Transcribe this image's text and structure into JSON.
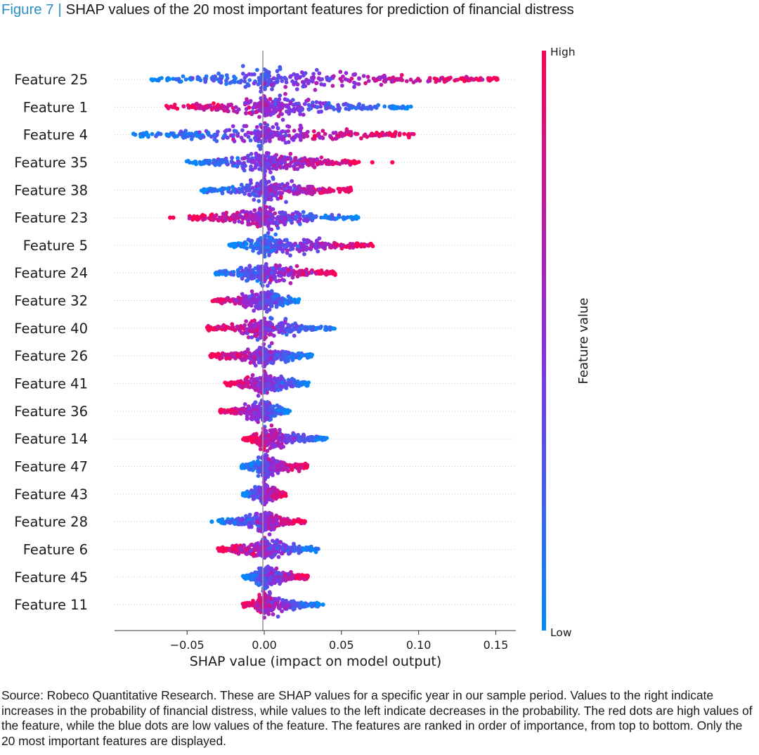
{
  "figure": {
    "label": "Figure 7",
    "separator": "|",
    "title": "SHAP values of the 20 most important features for prediction of financial distress"
  },
  "source_note": "Source: Robeco Quantitative Research. These are SHAP values for a specific year in our sample period. Values to the right indicate increases in the probability of financial distress, while values to the left indicate decreases in the probability. The red dots are high values of the feature, while the blue dots are low values of the feature. The features are ranked in order of importance, from top to bottom. Only the 20 most important features are displayed.",
  "chart_data": {
    "type": "scatter",
    "subtype": "shap-beeswarm",
    "xlabel": "SHAP value (impact on model output)",
    "ylabel": "",
    "xlim": [
      -0.097,
      0.163
    ],
    "xticks": [
      -0.05,
      0.0,
      0.05,
      0.1,
      0.15
    ],
    "xtick_labels": [
      "−0.05",
      "0.00",
      "0.05",
      "0.10",
      "0.15"
    ],
    "grid": false,
    "zero_line": true,
    "colorbar": {
      "label": "Feature value",
      "high_label": "High",
      "low_label": "Low",
      "high_color": "#ff0052",
      "mid_color": "#8a2de0",
      "low_color": "#008bfb"
    },
    "features": [
      {
        "name": "Feature 25",
        "min": -0.073,
        "max": 0.151,
        "low_side": "left",
        "outliers": [
          -0.073,
          0.151
        ]
      },
      {
        "name": "Feature 1",
        "min": -0.064,
        "max": 0.095,
        "low_side": "right",
        "outliers": []
      },
      {
        "name": "Feature 4",
        "min": -0.085,
        "max": 0.098,
        "low_side": "left",
        "outliers": []
      },
      {
        "name": "Feature 35",
        "min": -0.051,
        "max": 0.062,
        "low_side": "left",
        "outliers": [
          0.07,
          0.083
        ]
      },
      {
        "name": "Feature 38",
        "min": -0.042,
        "max": 0.057,
        "low_side": "left",
        "outliers": []
      },
      {
        "name": "Feature 23",
        "min": -0.049,
        "max": 0.061,
        "low_side": "right",
        "outliers": [
          -0.061,
          -0.059
        ]
      },
      {
        "name": "Feature 5",
        "min": -0.023,
        "max": 0.072,
        "low_side": "left",
        "outliers": []
      },
      {
        "name": "Feature 24",
        "min": -0.032,
        "max": 0.046,
        "low_side": "left",
        "outliers": []
      },
      {
        "name": "Feature 32",
        "min": -0.034,
        "max": 0.023,
        "low_side": "right",
        "outliers": []
      },
      {
        "name": "Feature 40",
        "min": -0.037,
        "max": 0.046,
        "low_side": "right",
        "outliers": []
      },
      {
        "name": "Feature 26",
        "min": -0.035,
        "max": 0.031,
        "low_side": "right",
        "outliers": []
      },
      {
        "name": "Feature 41",
        "min": -0.026,
        "max": 0.03,
        "low_side": "right",
        "outliers": []
      },
      {
        "name": "Feature 36",
        "min": -0.029,
        "max": 0.017,
        "low_side": "right",
        "outliers": []
      },
      {
        "name": "Feature 14",
        "min": -0.014,
        "max": 0.041,
        "low_side": "right",
        "outliers": []
      },
      {
        "name": "Feature 47",
        "min": -0.015,
        "max": 0.028,
        "low_side": "left",
        "outliers": []
      },
      {
        "name": "Feature 43",
        "min": -0.014,
        "max": 0.014,
        "low_side": "left",
        "outliers": []
      },
      {
        "name": "Feature 28",
        "min": -0.03,
        "max": 0.027,
        "low_side": "left",
        "outliers": [
          -0.034
        ]
      },
      {
        "name": "Feature 6",
        "min": -0.03,
        "max": 0.035,
        "low_side": "right",
        "outliers": []
      },
      {
        "name": "Feature 45",
        "min": -0.014,
        "max": 0.029,
        "low_side": "left",
        "outliers": []
      },
      {
        "name": "Feature 11",
        "min": -0.015,
        "max": 0.036,
        "low_side": "right",
        "outliers": [
          0.038
        ]
      }
    ]
  }
}
